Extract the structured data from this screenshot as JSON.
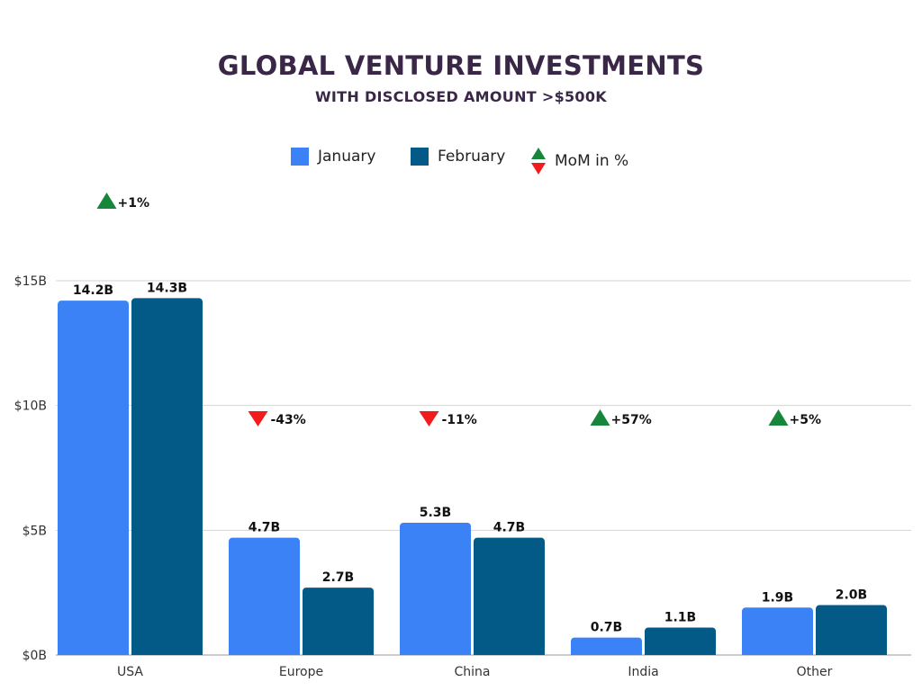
{
  "chart_data": {
    "type": "bar",
    "title": "GLOBAL VENTURE INVESTMENTS",
    "subtitle": "WITH DISCLOSED AMOUNT >$500K",
    "categories": [
      "USA",
      "Europe",
      "China",
      "India",
      "Other"
    ],
    "series": [
      {
        "name": "January",
        "values": [
          14.2,
          4.7,
          5.3,
          0.7,
          1.9
        ],
        "color": "#3b82f6",
        "labels": [
          "14.2B",
          "4.7B",
          "5.3B",
          "0.7B",
          "1.9B"
        ]
      },
      {
        "name": "February",
        "values": [
          14.3,
          2.7,
          4.7,
          1.1,
          2.0
        ],
        "color": "#035a86",
        "labels": [
          "14.3B",
          "2.7B",
          "4.7B",
          "1.1B",
          "2.0B"
        ]
      }
    ],
    "mom": {
      "legend_label": "MoM in %",
      "values": [
        "+1%",
        "-43%",
        "-11%",
        "+57%",
        "+5%"
      ],
      "direction": [
        "up",
        "down",
        "down",
        "up",
        "up"
      ],
      "up_color": "#16873a",
      "down_color": "#f21c1c"
    },
    "y_ticks": [
      {
        "value": 0,
        "label": "$0B"
      },
      {
        "value": 5,
        "label": "$5B"
      },
      {
        "value": 10,
        "label": "$10B"
      },
      {
        "value": 15,
        "label": "$15B"
      }
    ],
    "ylim": [
      0,
      15
    ],
    "grid": true,
    "legend_position": "top"
  }
}
